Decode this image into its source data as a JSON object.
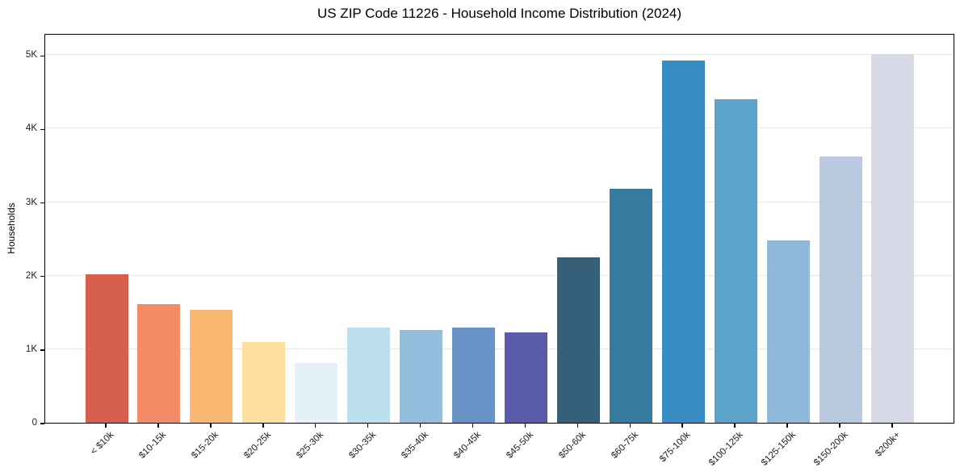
{
  "chart_data": {
    "type": "bar",
    "title": "US ZIP Code 11226 - Household Income Distribution (2024)",
    "xlabel": "",
    "ylabel": "Households",
    "categories": [
      "< $10k",
      "$10-15k",
      "$15-20k",
      "$20-25k",
      "$25-30k",
      "$30-35k",
      "$35-40k",
      "$40-45k",
      "$45-50k",
      "$50-60k",
      "$60-75k",
      "$75-100k",
      "$100-125k",
      "$125-150k",
      "$150-200k",
      "$200k+"
    ],
    "values": [
      2020,
      1610,
      1540,
      1100,
      810,
      1290,
      1260,
      1300,
      1230,
      2250,
      3180,
      4930,
      4400,
      2480,
      3620,
      5020
    ],
    "bar_colors": [
      "#d6604d",
      "#f58a67",
      "#fab772",
      "#fde0a0",
      "#e4f1f6",
      "#bbdfec",
      "#93bedd",
      "#6992c6",
      "#5a5cab",
      "#36607a",
      "#367a9e",
      "#398dc4",
      "#5ba3cb",
      "#8fb8d9",
      "#b9c9e0",
      "#d7d9e6"
    ],
    "yticks": [
      {
        "value": 0,
        "label": "0"
      },
      {
        "value": 1000,
        "label": "1K"
      },
      {
        "value": 2000,
        "label": "2K"
      },
      {
        "value": 3000,
        "label": "3K"
      },
      {
        "value": 4000,
        "label": "4K"
      },
      {
        "value": 5000,
        "label": "5K"
      }
    ],
    "ylim": [
      0,
      5300
    ],
    "grid": "horizontal-only",
    "gridline_color": "#e8e8e8",
    "background_color": "#ffffff",
    "x_tick_rotation_deg": 45,
    "legend": "none"
  }
}
